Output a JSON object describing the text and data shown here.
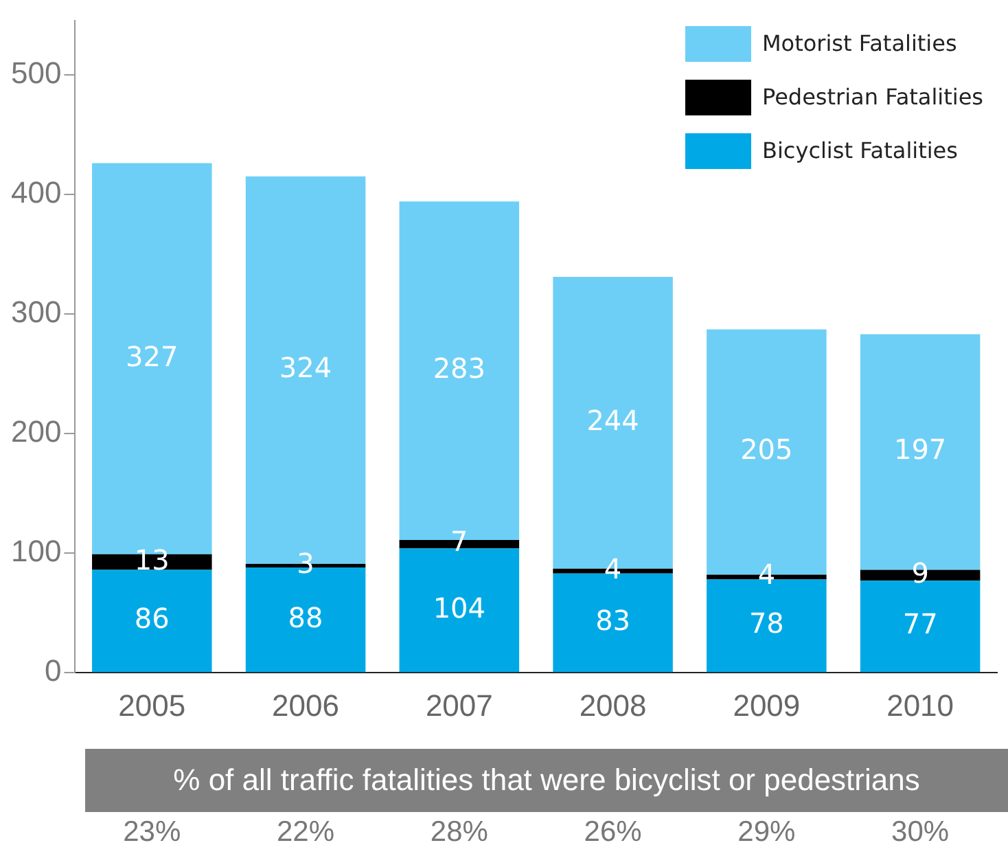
{
  "chart_data": {
    "type": "bar",
    "stacked": true,
    "categories": [
      "2005",
      "2006",
      "2007",
      "2008",
      "2009",
      "2010"
    ],
    "series": [
      {
        "name": "Bicyclist Fatalities",
        "color": "#00a9e6",
        "values": [
          86,
          88,
          104,
          83,
          78,
          77
        ]
      },
      {
        "name": "Pedestrian Fatalities",
        "color": "#000000",
        "values": [
          13,
          3,
          7,
          4,
          4,
          9
        ]
      },
      {
        "name": "Motorist Fatalities",
        "color": "#6dcff6",
        "values": [
          327,
          324,
          283,
          244,
          205,
          197
        ]
      }
    ],
    "ylim": [
      0,
      545
    ],
    "yticks": [
      0,
      100,
      200,
      300,
      400,
      500
    ],
    "grid": false,
    "legend": "top right",
    "data_labels": true,
    "annotations": [
      "% of all traffic fatalities that were bicyclist or pedestrians",
      "23%",
      "22%",
      "28%",
      "26%",
      "29%",
      "30%"
    ]
  }
}
